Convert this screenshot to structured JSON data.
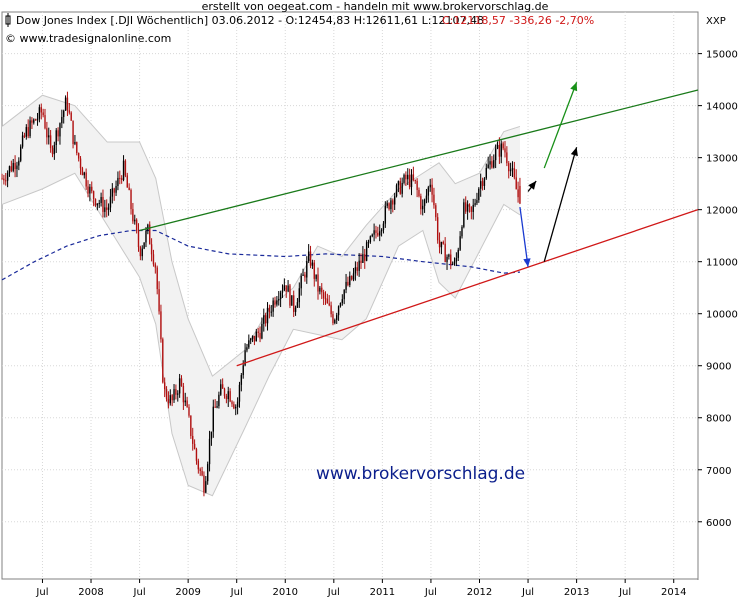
{
  "header": {
    "credit": "erstellt von oegeat.com - handeln mit www.brokervorschlag.de",
    "instrument": "Dow Jones Index [.DJI  Wöchentlich] 03.06.2012 - O:12454,83 H:12611,61 L:12107,48",
    "change": "C:12118,57 -336,26 -2,70%",
    "copyright": "© www.tradesignalonline.com",
    "y_unit": "XXP"
  },
  "watermark": "www.brokervorschlag.de",
  "colors": {
    "up_candle": "#000000",
    "down_candle": "#b01010",
    "bollinger_fill": "#f2f2f2",
    "bollinger_line": "#c8c8c8",
    "moving_average": "#1a2a9a",
    "upper_trendline": "#1a7a1a",
    "lower_trendline": "#d01818",
    "arrow_green": "#189018",
    "arrow_black": "#000000",
    "arrow_blue": "#1a3ad0",
    "grid": "#d8d8d8"
  },
  "chart_data": {
    "type": "candlestick",
    "interval": "weekly",
    "y_axis": {
      "ticks": [
        6000,
        7000,
        8000,
        9000,
        10000,
        11000,
        12000,
        13000,
        14000,
        15000
      ],
      "range": [
        4900,
        15800
      ],
      "position": "right"
    },
    "x_axis": {
      "ticks": [
        "Jul",
        "2008",
        "Jul",
        "2009",
        "Jul",
        "2010",
        "Jul",
        "2011",
        "Jul",
        "2012",
        "Jul",
        "2013",
        "Jul",
        "2014"
      ],
      "tick_dates": [
        "2007-07",
        "2008-01",
        "2008-07",
        "2009-01",
        "2009-07",
        "2010-01",
        "2010-07",
        "2011-01",
        "2011-07",
        "2012-01",
        "2012-07",
        "2013-01",
        "2013-07",
        "2014-01"
      ],
      "range": [
        "2007-02",
        "2014-04"
      ]
    },
    "last_bar": {
      "date": "2012-06-03",
      "open": 12454.83,
      "high": 12611.61,
      "low": 12107.48,
      "close": 12118.57
    },
    "price_path": [
      [
        "2007-02",
        12600
      ],
      [
        "2007-04",
        13000
      ],
      [
        "2007-05",
        13500
      ],
      [
        "2007-07",
        13900
      ],
      [
        "2007-08",
        13100
      ],
      [
        "2007-10",
        14100
      ],
      [
        "2007-11",
        13200
      ],
      [
        "2008-01",
        12300
      ],
      [
        "2008-03",
        12000
      ],
      [
        "2008-05",
        12800
      ],
      [
        "2008-07",
        11200
      ],
      [
        "2008-08",
        11600
      ],
      [
        "2008-09",
        10900
      ],
      [
        "2008-10",
        8500
      ],
      [
        "2008-11",
        8300
      ],
      [
        "2008-12",
        8700
      ],
      [
        "2009-01",
        8000
      ],
      [
        "2009-02",
        7200
      ],
      [
        "2009-03",
        6700
      ],
      [
        "2009-04",
        8000
      ],
      [
        "2009-05",
        8500
      ],
      [
        "2009-06",
        8500
      ],
      [
        "2009-07",
        8200
      ],
      [
        "2009-08",
        9300
      ],
      [
        "2009-10",
        9700
      ],
      [
        "2009-12",
        10400
      ],
      [
        "2010-01",
        10600
      ],
      [
        "2010-02",
        10100
      ],
      [
        "2010-04",
        11100
      ],
      [
        "2010-05",
        10500
      ],
      [
        "2010-07",
        9900
      ],
      [
        "2010-08",
        10400
      ],
      [
        "2010-09",
        10600
      ],
      [
        "2010-11",
        11200
      ],
      [
        "2011-01",
        11800
      ],
      [
        "2011-02",
        12200
      ],
      [
        "2011-04",
        12600
      ],
      [
        "2011-05",
        12500
      ],
      [
        "2011-06",
        12000
      ],
      [
        "2011-07",
        12600
      ],
      [
        "2011-08",
        11300
      ],
      [
        "2011-10",
        10900
      ],
      [
        "2011-11",
        12000
      ],
      [
        "2011-12",
        11900
      ],
      [
        "2012-01",
        12500
      ],
      [
        "2012-03",
        13100
      ],
      [
        "2012-04",
        13200
      ],
      [
        "2012-05",
        12700
      ],
      [
        "2012-06",
        12119
      ]
    ],
    "moving_average": [
      [
        "2007-02",
        10650
      ],
      [
        "2007-06",
        11000
      ],
      [
        "2007-10",
        11300
      ],
      [
        "2008-02",
        11500
      ],
      [
        "2008-06",
        11600
      ],
      [
        "2008-09",
        11600
      ],
      [
        "2009-01",
        11300
      ],
      [
        "2009-06",
        11150
      ],
      [
        "2010-01",
        11100
      ],
      [
        "2010-06",
        11150
      ],
      [
        "2011-01",
        11100
      ],
      [
        "2011-06",
        11000
      ],
      [
        "2011-12",
        10900
      ],
      [
        "2012-04",
        10780
      ],
      [
        "2012-06",
        10800
      ]
    ],
    "bollinger": {
      "upper": [
        [
          "2007-02",
          13600
        ],
        [
          "2007-07",
          14200
        ],
        [
          "2007-11",
          14000
        ],
        [
          "2008-03",
          13300
        ],
        [
          "2008-07",
          13300
        ],
        [
          "2008-09",
          12600
        ],
        [
          "2008-11",
          11000
        ],
        [
          "2009-01",
          9900
        ],
        [
          "2009-04",
          8800
        ],
        [
          "2009-08",
          9300
        ],
        [
          "2009-11",
          10100
        ],
        [
          "2010-02",
          10500
        ],
        [
          "2010-05",
          11300
        ],
        [
          "2010-08",
          11100
        ],
        [
          "2010-11",
          11700
        ],
        [
          "2011-03",
          12400
        ],
        [
          "2011-06",
          12700
        ],
        [
          "2011-08",
          12900
        ],
        [
          "2011-10",
          12500
        ],
        [
          "2012-01",
          12700
        ],
        [
          "2012-04",
          13500
        ],
        [
          "2012-06",
          13600
        ]
      ],
      "lower": [
        [
          "2007-02",
          12100
        ],
        [
          "2007-07",
          12400
        ],
        [
          "2007-11",
          12700
        ],
        [
          "2008-03",
          11700
        ],
        [
          "2008-07",
          10700
        ],
        [
          "2008-09",
          9800
        ],
        [
          "2008-11",
          7700
        ],
        [
          "2009-01",
          6700
        ],
        [
          "2009-04",
          6500
        ],
        [
          "2009-08",
          7800
        ],
        [
          "2009-11",
          8800
        ],
        [
          "2010-02",
          9700
        ],
        [
          "2010-05",
          9600
        ],
        [
          "2010-08",
          9500
        ],
        [
          "2010-11",
          9900
        ],
        [
          "2011-03",
          11300
        ],
        [
          "2011-06",
          11600
        ],
        [
          "2011-08",
          10600
        ],
        [
          "2011-10",
          10300
        ],
        [
          "2012-01",
          11200
        ],
        [
          "2012-04",
          12100
        ],
        [
          "2012-06",
          11900
        ]
      ]
    },
    "trendlines": [
      {
        "name": "upper-channel",
        "color": "upper_trendline",
        "points": [
          [
            "2008-07",
            11600
          ],
          [
            "2014-04",
            14300
          ]
        ]
      },
      {
        "name": "lower-support",
        "color": "lower_trendline",
        "points": [
          [
            "2009-07",
            9000
          ],
          [
            "2014-04",
            12000
          ]
        ]
      }
    ],
    "arrows": [
      {
        "color": "arrow_green",
        "from": [
          "2012-09",
          12800
        ],
        "to": [
          "2013-01",
          14450
        ]
      },
      {
        "color": "arrow_black",
        "from": [
          "2012-09",
          11000
        ],
        "to": [
          "2013-01",
          13200
        ]
      },
      {
        "color": "arrow_black",
        "from": [
          "2012-07",
          12350
        ],
        "to": [
          "2012-08",
          12550
        ]
      },
      {
        "color": "arrow_blue",
        "from": [
          "2012-06",
          12050
        ],
        "to": [
          "2012-07",
          10900
        ]
      }
    ]
  }
}
